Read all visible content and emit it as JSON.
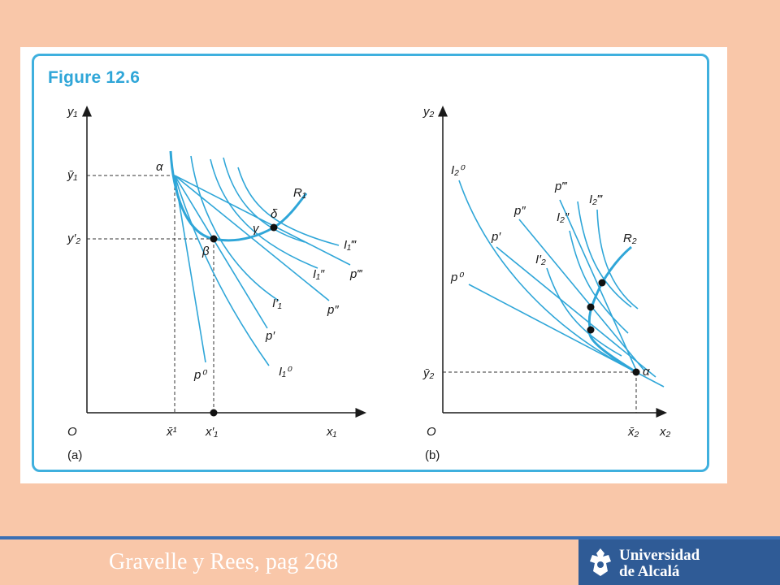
{
  "figure": {
    "title": "Figure 12.6",
    "panel_a": {
      "caption": "(a)",
      "origin": "O",
      "x_axis": "x₁",
      "y_axis": "y₁",
      "x_ticks": {
        "xbar": "x̄¹",
        "xprime": "x′₁"
      },
      "y_ticks": {
        "ybar": "ȳ₁",
        "yprime": "y′₂"
      },
      "points": {
        "alpha": "α",
        "beta": "β",
        "gamma": "γ",
        "delta": "δ"
      },
      "curve_labels": {
        "R": "R₁",
        "I3": "I₁‴",
        "I2": "I₁″",
        "I1": "I′₁",
        "I0": "I₁⁰",
        "p3": "p‴",
        "p2": "p″",
        "p1": "p′",
        "p0": "p⁰"
      }
    },
    "panel_b": {
      "caption": "(b)",
      "origin": "O",
      "x_axis": "x₂",
      "y_axis": "y₂",
      "x_ticks": {
        "xbar": "x̄₂"
      },
      "y_ticks": {
        "ybar": "ȳ₂"
      },
      "points": {
        "alpha": "α"
      },
      "curve_labels": {
        "R": "R₂",
        "I0": "I₂⁰",
        "I1": "I′₂",
        "I2": "I₂″",
        "I3": "I₂‴",
        "p0": "p⁰",
        "p1": "p′",
        "p2": "p″",
        "p3": "p‴"
      }
    }
  },
  "footer": {
    "source": "Gravelle y Rees, pag 268",
    "logo_line1": "Universidad",
    "logo_line2": "de Alcalá"
  },
  "colors": {
    "background": "#f9c7a9",
    "curve": "#2fa6d8",
    "accent_frame": "#3fb0de",
    "footer_bar": "#3a6fb4",
    "logo_bg": "#2f5b96"
  }
}
